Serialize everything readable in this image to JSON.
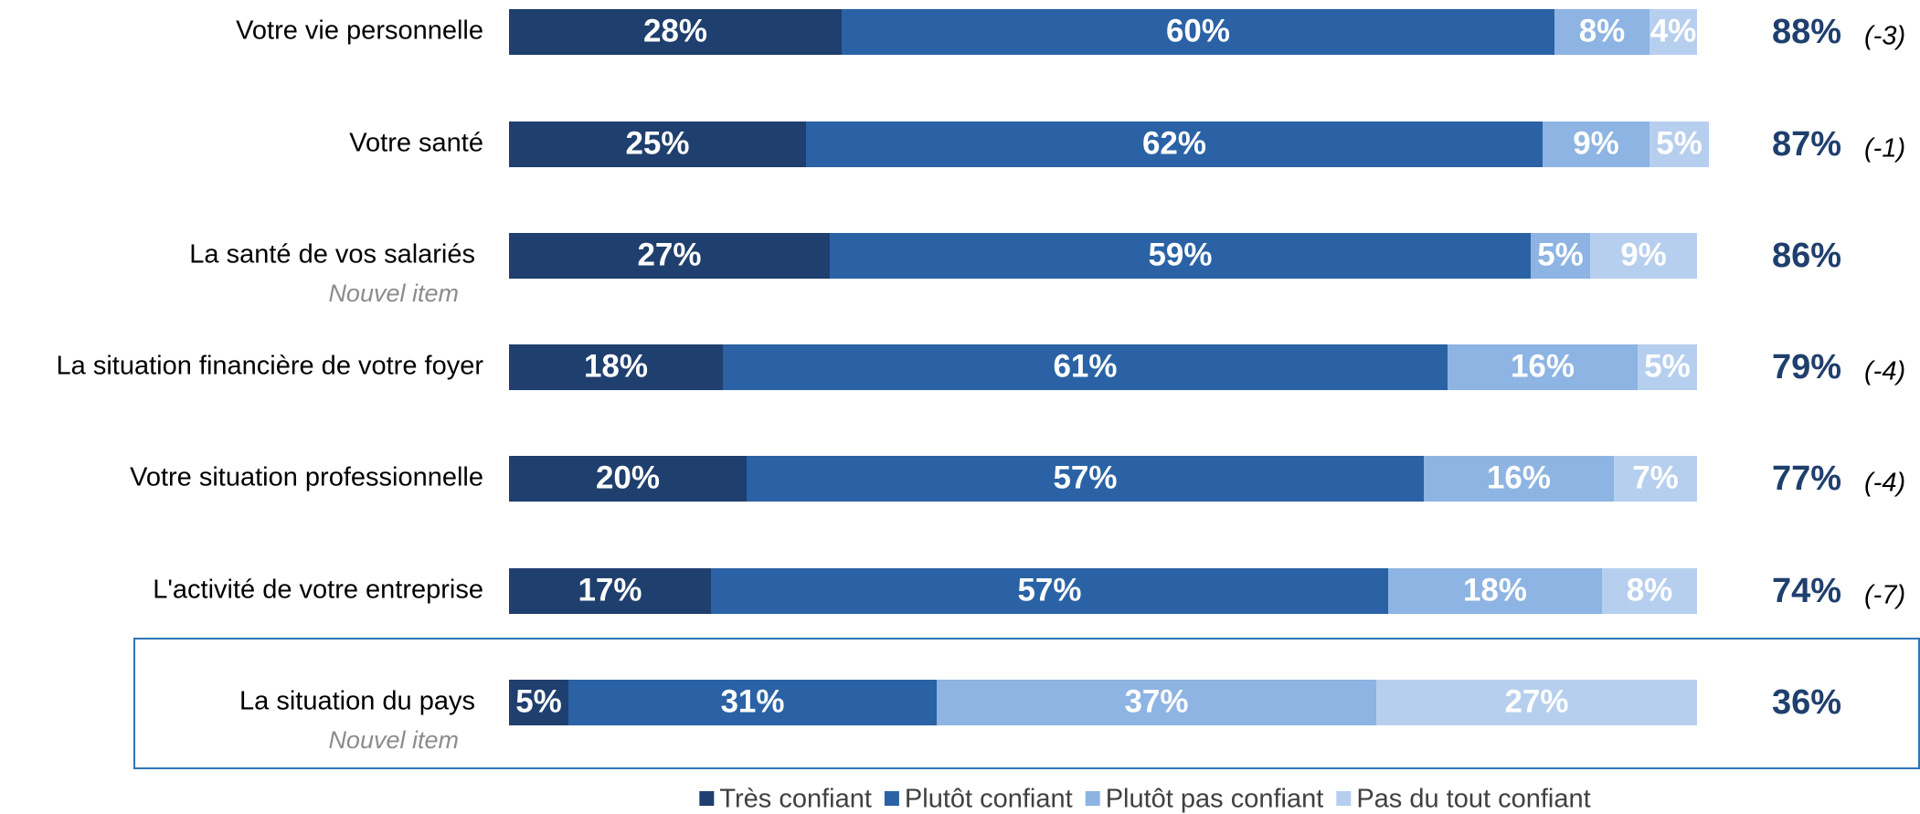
{
  "chart_data": {
    "type": "stacked-bar",
    "categories": [
      "Votre vie personnelle",
      "Votre santé",
      "La santé de vos salariés",
      "La situation financière de votre foyer",
      "Votre situation professionnelle",
      "L'activité de votre entreprise",
      "La situation du pays"
    ],
    "notes": [
      null,
      null,
      "Nouvel item",
      null,
      null,
      null,
      "Nouvel item"
    ],
    "series": [
      {
        "name": "Très confiant",
        "color": "#1f3f6e",
        "values": [
          28,
          25,
          27,
          18,
          20,
          17,
          5
        ],
        "value_labels": [
          "28%",
          "25%",
          "27%",
          "18%",
          "20%",
          "17%",
          "5%"
        ]
      },
      {
        "name": "Plutôt confiant",
        "color": "#2a62a5",
        "values": [
          60,
          62,
          59,
          61,
          57,
          57,
          31
        ],
        "value_labels": [
          "60%",
          "62%",
          "59%",
          "61%",
          "57%",
          "57%",
          "31%"
        ]
      },
      {
        "name": "Plutôt pas confiant",
        "color": "#8db4e2",
        "values": [
          8,
          9,
          5,
          16,
          16,
          18,
          37
        ],
        "value_labels": [
          "8%",
          "9%",
          "5%",
          "16%",
          "16%",
          "18%",
          "37%"
        ]
      },
      {
        "name": "Pas du tout confiant",
        "color": "#b7cfee",
        "values": [
          4,
          5,
          9,
          5,
          7,
          8,
          27
        ],
        "value_labels": [
          "4%",
          "5%",
          "9%",
          "5%",
          "7%",
          "8%",
          "27%"
        ]
      }
    ],
    "totals": {
      "values": [
        88,
        87,
        86,
        79,
        77,
        74,
        36
      ],
      "value_labels": [
        "88%",
        "87%",
        "86%",
        "79%",
        "77%",
        "74%",
        "36%"
      ]
    },
    "changes": {
      "values": [
        -3,
        -1,
        null,
        -4,
        -4,
        -7,
        null
      ],
      "value_labels": [
        "(-3)",
        "(-1)",
        null,
        "(-4)",
        "(-4)",
        "(-7)",
        null
      ]
    }
  }
}
